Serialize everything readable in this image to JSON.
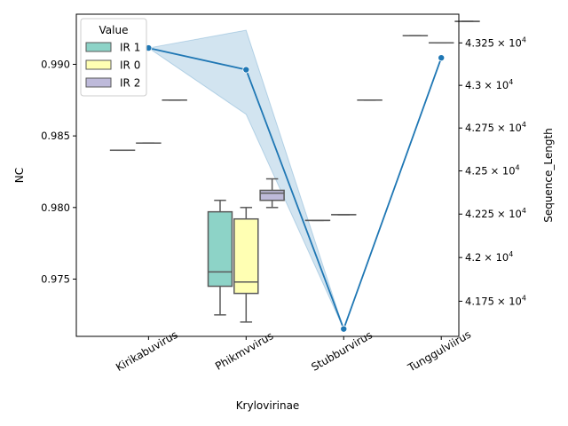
{
  "chart_data": {
    "type": "box+line",
    "xlabel": "Krylovirinae",
    "ylabel_left": "NC",
    "ylabel_right": "Sequence_Length",
    "categories": [
      "Kirikabuvirus",
      "Phikmvvirus",
      "Stubburvirus",
      "Tunggulviirus"
    ],
    "left_axis": {
      "ylim": [
        0.971,
        0.9935
      ],
      "ticks": [
        0.975,
        0.98,
        0.985,
        0.99
      ],
      "tick_labels": [
        "0.975",
        "0.980",
        "0.985",
        "0.990"
      ]
    },
    "right_axis": {
      "scale": "log",
      "ylim": [
        41550,
        43420
      ],
      "ticks": [
        41750,
        42000,
        42250,
        42500,
        42750,
        43000,
        43250
      ],
      "tick_labels": [
        "4.175",
        "4.2",
        "4.225",
        "4.25",
        "4.275",
        "4.3",
        "4.325"
      ],
      "tick_label_base": "× 10",
      "tick_label_exponent": "4"
    },
    "legend": {
      "title": "Value",
      "placement": "upper-left",
      "entries": [
        {
          "name": "IR 1",
          "color": "#8dd3c7"
        },
        {
          "name": "IR 0",
          "color": "#ffffb3"
        },
        {
          "name": "IR 2",
          "color": "#bebada"
        }
      ]
    },
    "box_series": [
      {
        "name": "IR 1",
        "color": "#8dd3c7",
        "boxes": [
          {
            "category": "Kirikabuvirus",
            "min": 0.984,
            "q1": 0.984,
            "median": 0.984,
            "q3": 0.984,
            "max": 0.984
          },
          {
            "category": "Phikmvvirus",
            "min": 0.9725,
            "q1": 0.9745,
            "median": 0.9755,
            "q3": 0.9797,
            "max": 0.9805
          },
          {
            "category": "Stubburvirus",
            "min": 0.9791,
            "q1": 0.9791,
            "median": 0.9791,
            "q3": 0.9791,
            "max": 0.9791
          },
          {
            "category": "Tunggulviirus",
            "min": 0.992,
            "q1": 0.992,
            "median": 0.992,
            "q3": 0.992,
            "max": 0.992
          }
        ]
      },
      {
        "name": "IR 0",
        "color": "#ffffb3",
        "boxes": [
          {
            "category": "Kirikabuvirus",
            "min": 0.9845,
            "q1": 0.9845,
            "median": 0.9845,
            "q3": 0.9845,
            "max": 0.9845
          },
          {
            "category": "Phikmvvirus",
            "min": 0.972,
            "q1": 0.974,
            "median": 0.9748,
            "q3": 0.9792,
            "max": 0.98
          },
          {
            "category": "Stubburvirus",
            "min": 0.9795,
            "q1": 0.9795,
            "median": 0.9795,
            "q3": 0.9795,
            "max": 0.9795
          },
          {
            "category": "Tunggulviirus",
            "min": 0.9915,
            "q1": 0.9915,
            "median": 0.9915,
            "q3": 0.9915,
            "max": 0.9915
          }
        ]
      },
      {
        "name": "IR 2",
        "color": "#bebada",
        "boxes": [
          {
            "category": "Kirikabuvirus",
            "min": 0.9875,
            "q1": 0.9875,
            "median": 0.9875,
            "q3": 0.9875,
            "max": 0.9875
          },
          {
            "category": "Phikmvvirus",
            "min": 0.98,
            "q1": 0.9805,
            "median": 0.981,
            "q3": 0.9812,
            "max": 0.982
          },
          {
            "category": "Stubburvirus",
            "min": 0.9875,
            "q1": 0.9875,
            "median": 0.9875,
            "q3": 0.9875,
            "max": 0.9875
          },
          {
            "category": "Tunggulviirus",
            "min": 0.993,
            "q1": 0.993,
            "median": 0.993,
            "q3": 0.993,
            "max": 0.993
          }
        ]
      }
    ],
    "line_series": {
      "axis": "right",
      "color": "#1f77b4",
      "ci_color": "#1f77b4",
      "points": [
        {
          "category": "Kirikabuvirus",
          "y": 43220
        },
        {
          "category": "Phikmvvirus",
          "y": 43092
        },
        {
          "category": "Stubburvirus",
          "y": 41592
        },
        {
          "category": "Tunggulviirus",
          "y": 43162
        }
      ],
      "ci": [
        {
          "category": "Kirikabuvirus",
          "low": 43220,
          "high": 43220
        },
        {
          "category": "Phikmvvirus",
          "low": 42830,
          "high": 43325
        },
        {
          "category": "Stubburvirus",
          "low": 41592,
          "high": 41592
        },
        {
          "category": "Tunggulviirus",
          "low": 43162,
          "high": 43162
        }
      ]
    }
  }
}
